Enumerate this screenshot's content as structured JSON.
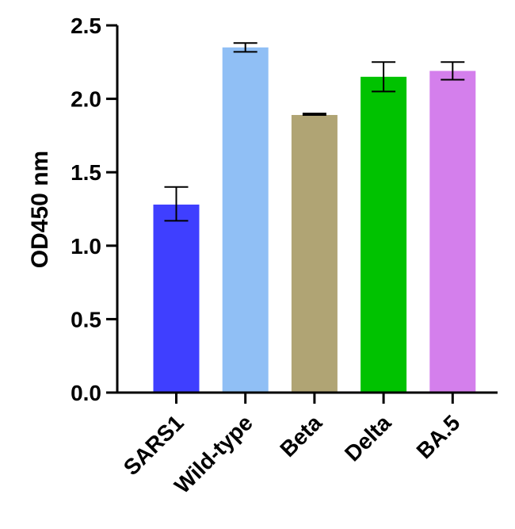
{
  "chart_data": {
    "type": "bar",
    "title": "",
    "xlabel": "",
    "ylabel": "OD450 nm",
    "ylim": [
      0,
      2.5
    ],
    "yticks": [
      "0.0",
      "0.5",
      "1.0",
      "1.5",
      "2.0",
      "2.5"
    ],
    "categories": [
      "SARS1",
      "Wild-type",
      "Beta",
      "Delta",
      "BA.5"
    ],
    "values": [
      1.28,
      2.35,
      1.89,
      2.15,
      2.19
    ],
    "error_low": [
      1.17,
      2.32,
      1.89,
      2.05,
      2.13
    ],
    "error_high": [
      1.4,
      2.38,
      1.9,
      2.25,
      2.25
    ],
    "colors": [
      "#3f3fff",
      "#90bff5",
      "#b0a474",
      "#00c200",
      "#d47fec"
    ],
    "grid": false,
    "legend": "none"
  }
}
